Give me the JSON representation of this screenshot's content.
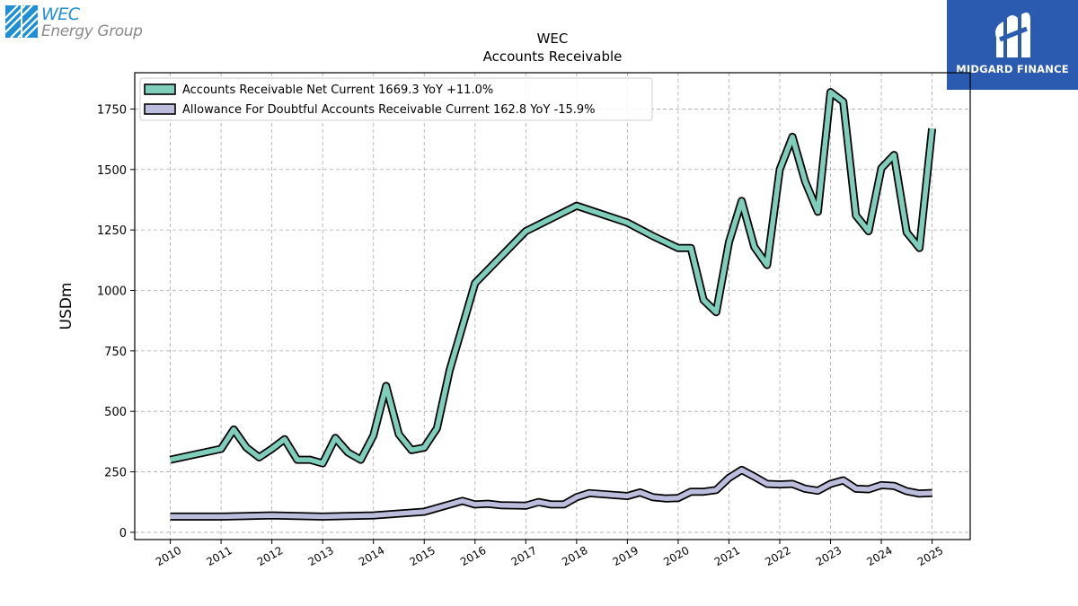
{
  "company_logo": {
    "name": "WEC",
    "subtitle": "Energy Group"
  },
  "brand_logo": {
    "name": "MIDGARD FINANCE",
    "color": "#2a5bb0"
  },
  "chart_data": {
    "type": "line",
    "title": "WEC",
    "subtitle": "Accounts Receivable",
    "xlabel": "",
    "ylabel": "USDm",
    "xlim": [
      2009.3,
      2025.75
    ],
    "ylim": [
      -30,
      1900
    ],
    "yticks": [
      0,
      250,
      500,
      750,
      1000,
      1250,
      1500,
      1750
    ],
    "xticks": [
      2010,
      2011,
      2012,
      2013,
      2014,
      2015,
      2016,
      2017,
      2018,
      2019,
      2020,
      2021,
      2022,
      2023,
      2024,
      2025
    ],
    "grid": true,
    "legend_position": "top-left",
    "series": [
      {
        "name": "Accounts Receivable Net Current  1669.3 YoY +11.0%",
        "color": "#7fcdbb",
        "points": [
          [
            2010.0,
            300
          ],
          [
            2011.0,
            345
          ],
          [
            2011.25,
            425
          ],
          [
            2011.5,
            350
          ],
          [
            2011.75,
            310
          ],
          [
            2012.0,
            345
          ],
          [
            2012.25,
            385
          ],
          [
            2012.5,
            300
          ],
          [
            2012.75,
            300
          ],
          [
            2013.0,
            285
          ],
          [
            2013.25,
            390
          ],
          [
            2013.5,
            330
          ],
          [
            2013.75,
            300
          ],
          [
            2014.0,
            400
          ],
          [
            2014.25,
            605
          ],
          [
            2014.5,
            405
          ],
          [
            2014.75,
            340
          ],
          [
            2015.0,
            350
          ],
          [
            2015.25,
            430
          ],
          [
            2015.5,
            670
          ],
          [
            2015.75,
            850
          ],
          [
            2016.0,
            1030
          ],
          [
            2017.0,
            1245
          ],
          [
            2018.0,
            1350
          ],
          [
            2019.0,
            1280
          ],
          [
            2019.5,
            1225
          ],
          [
            2020.0,
            1175
          ],
          [
            2020.25,
            1175
          ],
          [
            2020.5,
            960
          ],
          [
            2020.75,
            910
          ],
          [
            2021.0,
            1200
          ],
          [
            2021.25,
            1370
          ],
          [
            2021.5,
            1180
          ],
          [
            2021.75,
            1105
          ],
          [
            2022.0,
            1500
          ],
          [
            2022.25,
            1635
          ],
          [
            2022.5,
            1450
          ],
          [
            2022.75,
            1325
          ],
          [
            2023.0,
            1820
          ],
          [
            2023.25,
            1780
          ],
          [
            2023.5,
            1310
          ],
          [
            2023.75,
            1245
          ],
          [
            2024.0,
            1505
          ],
          [
            2024.25,
            1560
          ],
          [
            2024.5,
            1240
          ],
          [
            2024.75,
            1175
          ],
          [
            2025.0,
            1669.3
          ]
        ]
      },
      {
        "name": "Allowance For Doubtful Accounts Receivable Current  162.8 YoY -15.9%",
        "color": "#bcbddc",
        "points": [
          [
            2010.0,
            65
          ],
          [
            2011.0,
            65
          ],
          [
            2012.0,
            70
          ],
          [
            2013.0,
            65
          ],
          [
            2014.0,
            70
          ],
          [
            2015.0,
            85
          ],
          [
            2015.75,
            130
          ],
          [
            2016.0,
            115
          ],
          [
            2016.25,
            118
          ],
          [
            2016.5,
            112
          ],
          [
            2017.0,
            110
          ],
          [
            2017.25,
            125
          ],
          [
            2017.5,
            115
          ],
          [
            2017.75,
            115
          ],
          [
            2018.0,
            145
          ],
          [
            2018.25,
            162
          ],
          [
            2019.0,
            150
          ],
          [
            2019.25,
            165
          ],
          [
            2019.5,
            145
          ],
          [
            2019.75,
            140
          ],
          [
            2020.0,
            142
          ],
          [
            2020.25,
            168
          ],
          [
            2020.5,
            168
          ],
          [
            2020.75,
            175
          ],
          [
            2021.0,
            225
          ],
          [
            2021.25,
            258
          ],
          [
            2021.5,
            230
          ],
          [
            2021.75,
            200
          ],
          [
            2022.0,
            198
          ],
          [
            2022.25,
            200
          ],
          [
            2022.5,
            180
          ],
          [
            2022.75,
            172
          ],
          [
            2023.0,
            200
          ],
          [
            2023.25,
            215
          ],
          [
            2023.5,
            180
          ],
          [
            2023.75,
            178
          ],
          [
            2024.0,
            195
          ],
          [
            2024.25,
            192
          ],
          [
            2024.5,
            170
          ],
          [
            2024.75,
            160
          ],
          [
            2025.0,
            162.8
          ]
        ]
      }
    ]
  }
}
